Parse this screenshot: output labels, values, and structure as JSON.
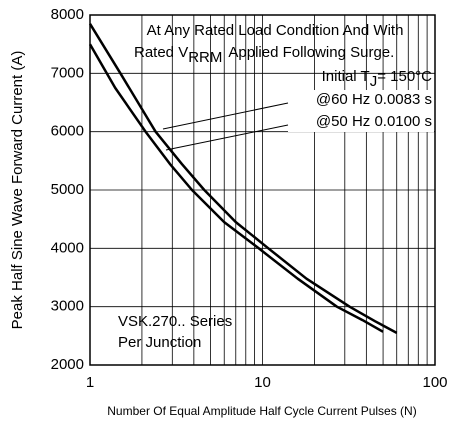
{
  "chart_data": {
    "type": "line",
    "x_label": "Number Of Equal Amplitude Half Cycle Current Pulses (N)",
    "y_label": "Peak Half Sine Wave Forward Current (A)",
    "xscale": "log",
    "grid": true,
    "xlim": [
      1,
      100
    ],
    "xticks": [
      1,
      10,
      100
    ],
    "xminorticks": [
      2,
      3,
      4,
      5,
      6,
      7,
      8,
      9,
      20,
      30,
      40,
      50,
      60,
      70,
      80,
      90
    ],
    "ylim": [
      2000,
      8000
    ],
    "yticks": [
      2000,
      3000,
      4000,
      5000,
      6000,
      7000,
      8000
    ],
    "series": [
      {
        "name": "@60 Hz 0.0083 s",
        "color": "#000000",
        "x": [
          1,
          1.5,
          2.4,
          3.4,
          4.6,
          7,
          10.8,
          18,
          32,
          45,
          60
        ],
        "values": [
          7850,
          7000,
          6000,
          5450,
          5000,
          4450,
          4000,
          3480,
          3000,
          2750,
          2550
        ]
      },
      {
        "name": "@50 Hz 0.0100 s",
        "color": "#000000",
        "x": [
          1,
          1.4,
          2.1,
          2.9,
          3.9,
          6,
          9.5,
          16,
          27,
          38,
          50
        ],
        "values": [
          7500,
          6750,
          6000,
          5450,
          5000,
          4450,
          4000,
          3480,
          3000,
          2770,
          2570
        ]
      }
    ],
    "annotations": {
      "line1": "At Any Rated Load Condition And With",
      "line2a": "Rated V",
      "line2sub": "RRM",
      "line2b": "Applied Following Surge.",
      "tja": "Initial T",
      "tjsub": "J",
      "tjb": "= 150°C",
      "box1": "VSK.270.. Series",
      "box2": "Per Junction"
    }
  }
}
